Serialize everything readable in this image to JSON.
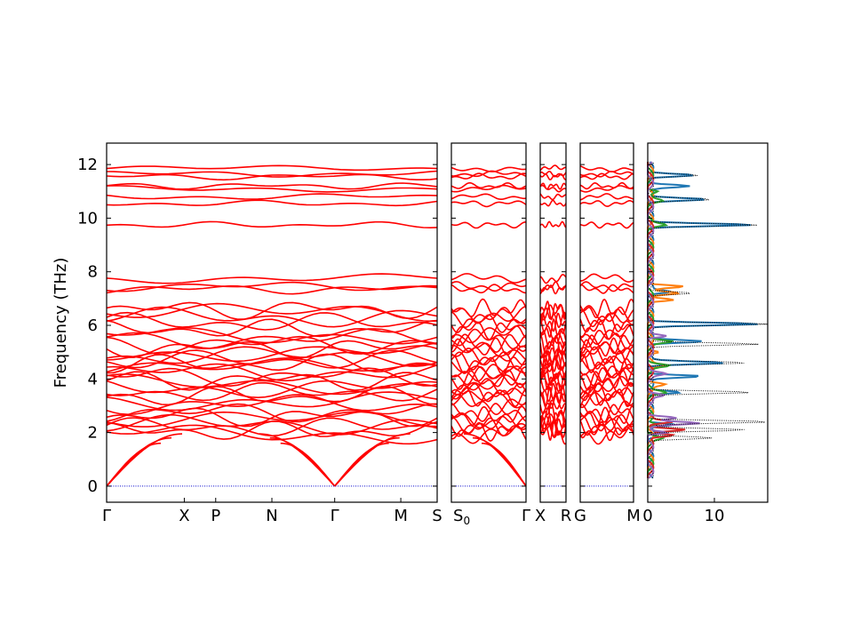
{
  "chart_data": {
    "type": "line",
    "title": "",
    "ylabel": "Frequency (THz)",
    "ylim": [
      -0.6,
      12.8
    ],
    "y_ticks": [
      "0",
      "2",
      "4",
      "6",
      "8",
      "10",
      "12"
    ],
    "panels": [
      {
        "name": "band-segment-1",
        "kpoint_labels": [
          "Γ",
          "X",
          "P",
          "N",
          "Γ",
          "M",
          "S"
        ],
        "kpoint_positions": [
          0,
          0.235,
          0.33,
          0.5,
          0.69,
          0.89,
          1.0
        ],
        "line_color": "#ff0000"
      },
      {
        "name": "band-segment-2",
        "kpoint_labels": [
          "S0",
          "Γ"
        ],
        "kpoint_positions": [
          0,
          1.0
        ],
        "line_color": "#ff0000"
      },
      {
        "name": "band-segment-3",
        "kpoint_labels": [
          "X",
          "R"
        ],
        "kpoint_positions": [
          0,
          1.0
        ],
        "line_color": "#ff0000"
      },
      {
        "name": "band-segment-4",
        "kpoint_labels": [
          "G",
          "M"
        ],
        "kpoint_positions": [
          0,
          1.0
        ],
        "line_color": "#ff0000"
      }
    ],
    "zero_line_color": "#0000cc",
    "dos": {
      "x_ticks": [
        "0",
        "10"
      ],
      "xlim": [
        0,
        18
      ],
      "series": [
        {
          "color": "#1f77b4",
          "peaks": [
            [
              11.6,
              7
            ],
            [
              11.2,
              6
            ],
            [
              10.7,
              9
            ],
            [
              9.75,
              16
            ],
            [
              7.25,
              3
            ],
            [
              6.05,
              17
            ],
            [
              5.4,
              8
            ],
            [
              4.6,
              11
            ],
            [
              4.1,
              8
            ],
            [
              3.5,
              5
            ],
            [
              2.3,
              4
            ],
            [
              1.9,
              3
            ]
          ]
        },
        {
          "color": "#ff7f0e",
          "peaks": [
            [
              7.45,
              5
            ],
            [
              7.2,
              4
            ],
            [
              6.95,
              4
            ],
            [
              5.0,
              2
            ],
            [
              4.5,
              2
            ],
            [
              3.8,
              2
            ]
          ]
        },
        {
          "color": "#2ca02c",
          "peaks": [
            [
              11.0,
              1.5
            ],
            [
              10.65,
              1.5
            ],
            [
              9.75,
              2
            ],
            [
              5.4,
              3
            ],
            [
              4.5,
              2.5
            ],
            [
              3.5,
              2
            ],
            [
              2.3,
              1.5
            ],
            [
              1.8,
              1.5
            ]
          ]
        },
        {
          "color": "#d62728",
          "peaks": [
            [
              2.1,
              6
            ],
            [
              1.9,
              4
            ],
            [
              2.4,
              3
            ]
          ]
        },
        {
          "color": "#9467bd",
          "peaks": [
            [
              2.55,
              4
            ],
            [
              2.35,
              7
            ],
            [
              2.0,
              3
            ],
            [
              4.2,
              2
            ],
            [
              3.4,
              2
            ],
            [
              5.6,
              3
            ]
          ]
        },
        {
          "color": "#000000",
          "style": "dotted",
          "peaks": [
            [
              11.6,
              8
            ],
            [
              10.7,
              10
            ],
            [
              9.75,
              17
            ],
            [
              7.2,
              7
            ],
            [
              6.05,
              18
            ],
            [
              5.3,
              17
            ],
            [
              4.6,
              15
            ],
            [
              3.5,
              16
            ],
            [
              2.4,
              18
            ],
            [
              2.1,
              14
            ],
            [
              1.8,
              10
            ]
          ]
        }
      ]
    }
  }
}
